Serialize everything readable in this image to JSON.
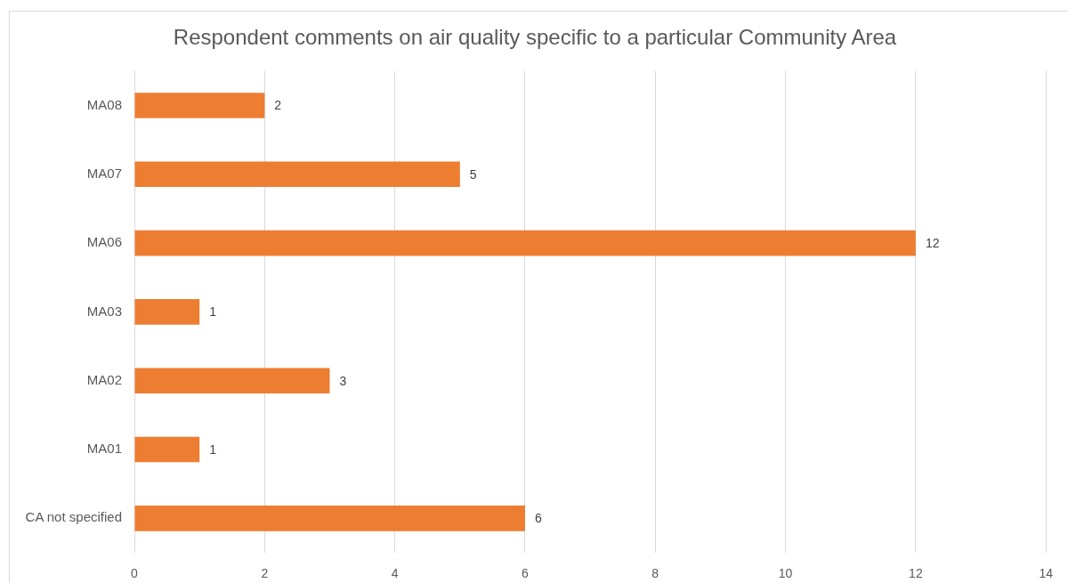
{
  "chart_data": {
    "type": "bar",
    "orientation": "horizontal",
    "title": "Respondent comments on air quality specific to a particular Community Area",
    "categories": [
      "MA08",
      "MA07",
      "MA06",
      "MA03",
      "MA02",
      "MA01",
      "CA not specified"
    ],
    "values": [
      2,
      5,
      12,
      1,
      3,
      1,
      6
    ],
    "color": "#ed7d31",
    "xlim": [
      0,
      14
    ],
    "xticks": [
      0,
      2,
      4,
      6,
      8,
      10,
      12,
      14
    ],
    "grid": "x",
    "data_labels": true
  }
}
